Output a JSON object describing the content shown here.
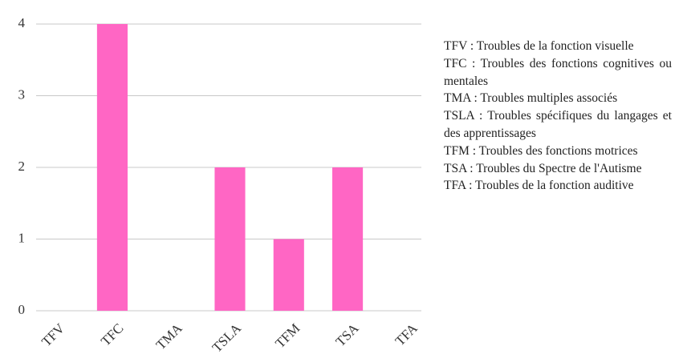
{
  "chart_data": {
    "type": "bar",
    "categories": [
      "TFV",
      "TFC",
      "TMA",
      "TSLA",
      "TFM",
      "TSA",
      "TFA"
    ],
    "values": [
      0,
      4,
      0,
      2,
      1,
      2,
      0
    ],
    "color": "#ff66c4",
    "ylim": [
      0,
      4
    ],
    "yticks": [
      0,
      1,
      2,
      3,
      4
    ],
    "grid": true,
    "notes": [
      "TFV : Troubles de la fonction visuelle",
      "TFC : Troubles des fonctions cognitives ou mentales",
      "TMA : Troubles multiples associés",
      "TSLA : Troubles spécifiques du langages et des apprentissages",
      "TFM : Troubles des fonctions motrices",
      "TSA : Troubles du Spectre de l'Autisme",
      "TFA : Troubles de la fonction auditive"
    ]
  }
}
